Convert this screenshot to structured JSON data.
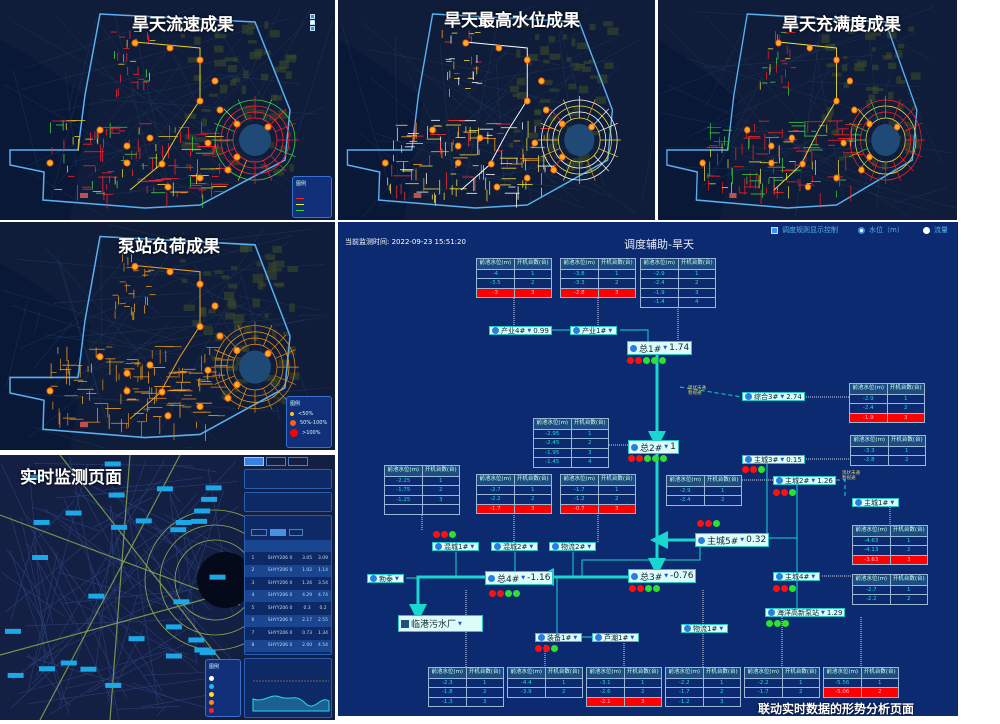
{
  "panels": {
    "flow": {
      "title": "旱天流速成果",
      "legend_title": "图例",
      "palette": [
        "#ff2030",
        "#ff2030",
        "#ff2030",
        "#e8d020",
        "#40d040"
      ]
    },
    "level": {
      "title": "旱天最高水位成果",
      "palette": [
        "#f0e040",
        "#f0e040",
        "#ffa020",
        "#ffffff",
        "#ff3030"
      ]
    },
    "fill": {
      "title": "旱天充满度成果",
      "palette": [
        "#ff2020",
        "#ff2020",
        "#ff2020",
        "#f0e040",
        "#40d040"
      ]
    },
    "pump": {
      "title": "泵站负荷成果",
      "legend_title": "图例",
      "legend_items": [
        "<50%",
        "50%-100%",
        ">100%"
      ],
      "legend_colors": [
        "#ffc020",
        "#ff6010",
        "#ff0000"
      ],
      "palette": [
        "#e09020",
        "#f0a020",
        "#d08018"
      ]
    },
    "realtime": {
      "title": "实时监测页面",
      "legend_title": "图例",
      "table_rows": [
        {
          "no": "1",
          "name": "SHYY206 0",
          "a": "3.05",
          "b": "3.09"
        },
        {
          "no": "2",
          "name": "SHYY206 0",
          "a": "1.02",
          "b": "1.14"
        },
        {
          "no": "3",
          "name": "SHYY206 0",
          "a": "1.26",
          "b": "3.54"
        },
        {
          "no": "4",
          "name": "SHYY206 0",
          "a": "4.29",
          "b": "4.74"
        },
        {
          "no": "5",
          "name": "SHYY206 0",
          "a": "0.3",
          "b": "0.2"
        },
        {
          "no": "6",
          "name": "SHYY206 0",
          "a": "2.17",
          "b": "2.55"
        },
        {
          "no": "7",
          "name": "SHYY206 0",
          "a": "0.73",
          "b": "1.34"
        },
        {
          "no": "8",
          "name": "SHYY206 0",
          "a": "2.00",
          "b": "4.54"
        }
      ]
    }
  },
  "diagram": {
    "monitor_time_label": "当前监测时间:",
    "monitor_time": "2022-09-23 15:51:20",
    "title": "调度辅助-旱天",
    "controls": {
      "rule_toggle": "调度规则显示控制",
      "rule_checked": true,
      "radio_level": "水位（m）",
      "radio_flow": "流量",
      "selected": "level"
    },
    "table_header": [
      "前池水位(m)",
      "开机台数(台)"
    ],
    "tables": [
      {
        "rows": [
          [
            "-4",
            "1"
          ],
          [
            "-3.5",
            "2"
          ],
          [
            "-3",
            "3"
          ]
        ],
        "alert": 2
      },
      {
        "rows": [
          [
            "-3.8",
            "1"
          ],
          [
            "-3.3",
            "2"
          ],
          [
            "-2.8",
            "3"
          ]
        ],
        "alert": 2
      },
      {
        "rows": [
          [
            "-2.9",
            "1"
          ],
          [
            "-2.4",
            "2"
          ],
          [
            "-1.9",
            "3"
          ],
          [
            "-1.4",
            "4"
          ]
        ],
        "alert": -1
      },
      {
        "rows": [
          [
            "-2.9",
            "1"
          ],
          [
            "-2.4",
            "2"
          ],
          [
            "-1.9",
            "3"
          ]
        ],
        "alert": 2
      },
      {
        "rows": [
          [
            "-2.95",
            "1"
          ],
          [
            "-2.45",
            "2"
          ],
          [
            "-1.95",
            "3"
          ],
          [
            "-1.45",
            "4"
          ]
        ],
        "alert": -1
      },
      {
        "rows": [
          [
            "-2.25",
            "1"
          ],
          [
            "-1.75",
            "2"
          ],
          [
            "-1.25",
            "3"
          ],
          [
            "",
            ""
          ]
        ],
        "alert": -1
      },
      {
        "rows": [
          [
            "-2.7",
            "1"
          ],
          [
            "-2.2",
            "2"
          ],
          [
            "-1.7",
            "3"
          ]
        ],
        "alert": 2
      },
      {
        "rows": [
          [
            "-1.7",
            "1"
          ],
          [
            "-1.2",
            "2"
          ],
          [
            "-0.7",
            "3"
          ]
        ],
        "alert": 2
      },
      {
        "rows": [
          [
            "-3.3",
            "1"
          ],
          [
            "-2.8",
            "2"
          ]
        ],
        "alert": -1
      },
      {
        "rows": [
          [
            "-2.9",
            "1"
          ],
          [
            "-2.4",
            "2"
          ]
        ],
        "alert": -1
      },
      {
        "rows": [
          [
            "-4.63",
            "1"
          ],
          [
            "-4.13",
            "2"
          ],
          [
            "-3.63",
            "3"
          ]
        ],
        "alert": 2
      },
      {
        "rows": [
          [
            "-2.7",
            "1"
          ],
          [
            "-2.2",
            "2"
          ]
        ],
        "alert": -1
      },
      {
        "rows": [
          [
            "-2.3",
            "1"
          ],
          [
            "-1.8",
            "2"
          ],
          [
            "-1.3",
            "3"
          ]
        ],
        "alert": -1
      },
      {
        "rows": [
          [
            "-4.4",
            "1"
          ],
          [
            "-3.9",
            "2"
          ]
        ],
        "alert": -1
      },
      {
        "rows": [
          [
            "-3.1",
            "1"
          ],
          [
            "-2.6",
            "2"
          ],
          [
            "-2.1",
            "3"
          ]
        ],
        "alert": 2
      },
      {
        "rows": [
          [
            "-2.2",
            "1"
          ],
          [
            "-1.7",
            "2"
          ],
          [
            "-1.2",
            "3"
          ]
        ],
        "alert": -1
      },
      {
        "rows": [
          [
            "-2.2",
            "1"
          ],
          [
            "-1.7",
            "2"
          ]
        ],
        "alert": -1
      },
      {
        "rows": [
          [
            "-5.56",
            "1"
          ],
          [
            "-5.06",
            "2"
          ]
        ],
        "alert": 1
      }
    ],
    "stations": [
      {
        "name": "产业4#",
        "value": "0.99",
        "dots": []
      },
      {
        "name": "产业1#",
        "value": "",
        "dots": []
      },
      {
        "name": "总1#",
        "value": "1.74",
        "dots": [
          "r",
          "r",
          "g",
          "g",
          "g"
        ]
      },
      {
        "name": "综合3#",
        "value": "2.74",
        "dots": []
      },
      {
        "name": "总2#",
        "value": "1",
        "dots": [
          "r",
          "r",
          "g",
          "g",
          "g"
        ]
      },
      {
        "name": "混城1#",
        "value": "",
        "dots": [
          "r",
          "r",
          "g"
        ]
      },
      {
        "name": "混城2#",
        "value": "",
        "dots": []
      },
      {
        "name": "物流2#",
        "value": "",
        "dots": []
      },
      {
        "name": "勃泰",
        "value": "",
        "dots": []
      },
      {
        "name": "总4#",
        "value": "-1.16",
        "dots": [
          "r",
          "r",
          "g",
          "g"
        ]
      },
      {
        "name": "总3#",
        "value": "-0.76",
        "dots": [
          "r",
          "r",
          "g",
          "g"
        ]
      },
      {
        "name": "主城3#",
        "value": "0.15",
        "dots": [
          "r",
          "r",
          "g"
        ]
      },
      {
        "name": "主城2#",
        "value": "1.26",
        "dots": [
          "r",
          "r",
          "g"
        ]
      },
      {
        "name": "主城1#",
        "value": "",
        "dots": []
      },
      {
        "name": "主城5#",
        "value": "0.32",
        "dots": [
          "r",
          "r",
          "g"
        ]
      },
      {
        "name": "主城4#",
        "value": "",
        "dots": [
          "r",
          "r",
          "g"
        ]
      },
      {
        "name": "海洋高新泵站",
        "value": "1.29",
        "dots": [
          "g",
          "g",
          "g"
        ]
      },
      {
        "name": "装备1#",
        "value": "",
        "dots": [
          "r",
          "r",
          "g"
        ]
      },
      {
        "name": "芦潮1#",
        "value": "",
        "dots": []
      },
      {
        "name": "物流1#",
        "value": "",
        "dots": []
      }
    ],
    "plant": "临港污水厂",
    "annotations": [
      [
        "现状未通",
        "暂视通"
      ],
      [
        "现状未通",
        "暂视通"
      ]
    ],
    "caption": "联动实时数据的形势分析页面"
  },
  "colors": {
    "panel_bg": "#0b2a70",
    "line": "#19d6d0",
    "alert": "#ff0000",
    "dot_red": "#ff1010",
    "dot_green": "#30e030"
  }
}
